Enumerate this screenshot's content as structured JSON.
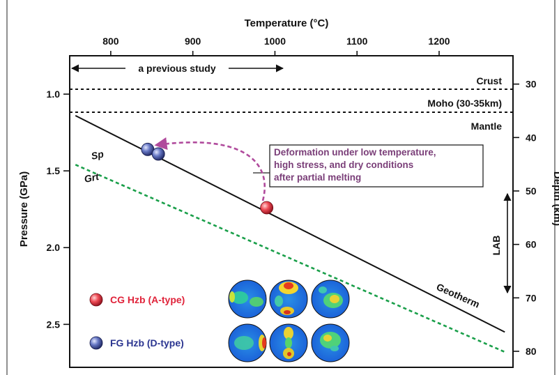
{
  "chart_data": {
    "type": "line",
    "title": "",
    "x_axis": {
      "label": "Temperature (°C)",
      "position": "top",
      "ticks": [
        "800",
        "900",
        "1000",
        "1100",
        "1200"
      ],
      "range": [
        750,
        1290
      ]
    },
    "y_axis_left": {
      "label": "Pressure (GPa)",
      "ticks": [
        "1.0",
        "1.5",
        "2.0",
        "2.5"
      ],
      "range": [
        0.75,
        2.78
      ]
    },
    "y_axis_right": {
      "label": "Depth (km)",
      "ticks": [
        "30",
        "40",
        "50",
        "60",
        "70",
        "80"
      ],
      "range": [
        24.7,
        83.0
      ]
    },
    "geotherm": {
      "label": "Geotherm",
      "x": [
        757,
        1280
      ],
      "y": [
        1.14,
        2.55
      ]
    },
    "sp_grt_boundary": {
      "labels": [
        "Sp",
        "Grt"
      ],
      "color": "#1a9f4a",
      "style": "dashed",
      "x": [
        757,
        1280
      ],
      "y": [
        1.46,
        2.68
      ]
    },
    "boundaries": [
      {
        "label": "Crust",
        "y": 1.0
      },
      {
        "label": "Moho (30-35km)",
        "y": 1.15
      },
      {
        "label": "Mantle",
        "y": null
      }
    ],
    "previous_study": {
      "label": "a previous study",
      "x_range": [
        757,
        1020
      ]
    },
    "lab": {
      "label": "LAB",
      "depth_range": [
        51,
        70
      ]
    },
    "points": [
      {
        "sample": "CG Hzb (A-type)",
        "x": 990,
        "y": 1.74,
        "color": "#e0233a"
      },
      {
        "sample": "FG Hzb (D-type)",
        "x": 845,
        "y": 1.36,
        "color": "#3a4fa0"
      },
      {
        "sample": "FG Hzb (D-type)",
        "x": 858,
        "y": 1.39,
        "color": "#3a4fa0"
      }
    ],
    "annotation": {
      "lines": [
        "Deformation under low temperature,",
        "high stress, and dry conditions",
        "after partial melting"
      ],
      "color": "#7a3e78"
    },
    "legend": {
      "placement": "bottom-left",
      "entries": [
        {
          "label": "CG Hzb (A-type)",
          "marker_color": "#e0233a",
          "text_color": "#e0233a"
        },
        {
          "label": "FG Hzb (D-type)",
          "marker_color": "#3a4fa0",
          "text_color": "#2b3590"
        }
      ]
    },
    "pole_figures": {
      "rows": [
        {
          "type": "A",
          "count": 3
        },
        {
          "type": "D",
          "count": 3
        }
      ]
    },
    "grid": false
  }
}
